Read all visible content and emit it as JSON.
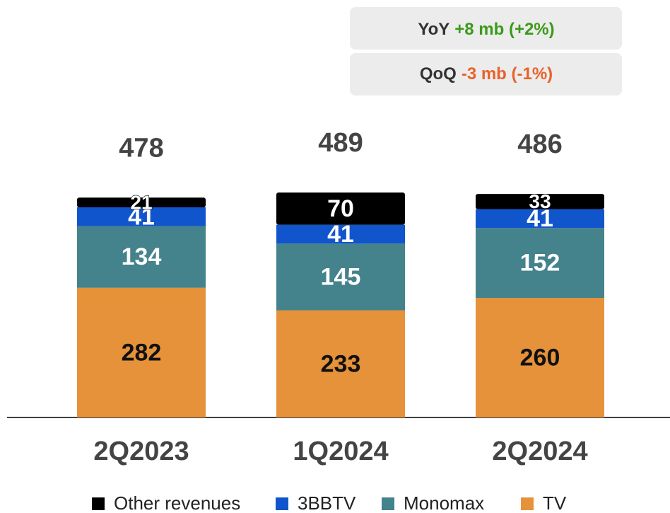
{
  "chart_data": {
    "type": "stacked-bar",
    "categories": [
      "2Q2023",
      "1Q2024",
      "2Q2024"
    ],
    "series": [
      {
        "name": "TV",
        "color": "#e5923a",
        "values": [
          282,
          233,
          260
        ]
      },
      {
        "name": "Monomax",
        "color": "#44828c",
        "values": [
          134,
          145,
          152
        ]
      },
      {
        "name": "3BBTV",
        "color": "#1155cc",
        "values": [
          41,
          41,
          41
        ]
      },
      {
        "name": "Other revenues",
        "color": "#000000",
        "values": [
          21,
          70,
          33
        ]
      }
    ],
    "totals": [
      478,
      489,
      486
    ],
    "annotations": [
      {
        "label": "YoY",
        "text": "+8 mb (+2%)",
        "color": "#3a9a1a"
      },
      {
        "label": "QoQ",
        "text": "-3 mb (-1%)",
        "color": "#e8622a"
      }
    ]
  }
}
